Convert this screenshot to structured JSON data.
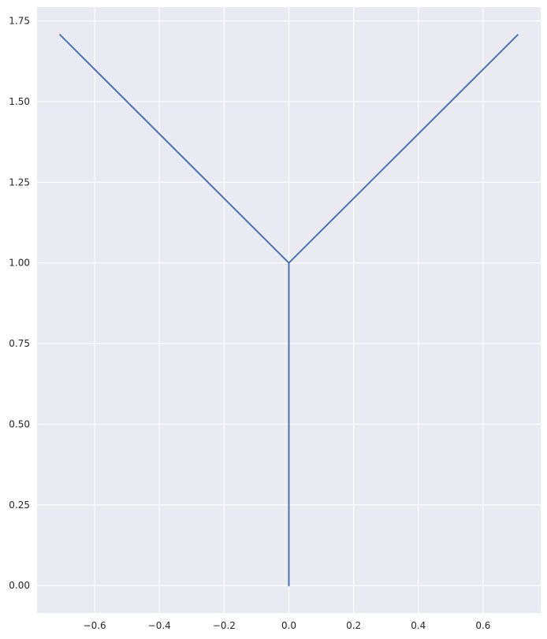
{
  "chart_data": {
    "type": "line",
    "title": "",
    "xlabel": "",
    "ylabel": "",
    "xlim": [
      -0.778,
      0.778
    ],
    "ylim": [
      -0.085,
      1.793
    ],
    "grid": true,
    "legend": "none",
    "x_ticks": [
      -0.6,
      -0.4,
      -0.2,
      0.0,
      0.2,
      0.4,
      0.6
    ],
    "x_tick_labels": [
      "−0.6",
      "−0.4",
      "−0.2",
      "0.0",
      "0.2",
      "0.4",
      "0.6"
    ],
    "y_ticks": [
      0.0,
      0.25,
      0.5,
      0.75,
      1.0,
      1.25,
      1.5,
      1.75
    ],
    "y_tick_labels": [
      "0.00",
      "0.25",
      "0.50",
      "0.75",
      "1.00",
      "1.25",
      "1.50",
      "1.75"
    ],
    "series": [
      {
        "color": "#4c72b0",
        "points": [
          [
            0.0,
            0.0
          ],
          [
            0.0,
            1.0
          ],
          [
            -0.707,
            1.707
          ],
          [
            0.0,
            1.0
          ],
          [
            0.707,
            1.707
          ]
        ]
      }
    ],
    "colors": {
      "plot_background": "#eaeaf2",
      "grid": "#ffffff",
      "line": "#4c72b0"
    }
  }
}
